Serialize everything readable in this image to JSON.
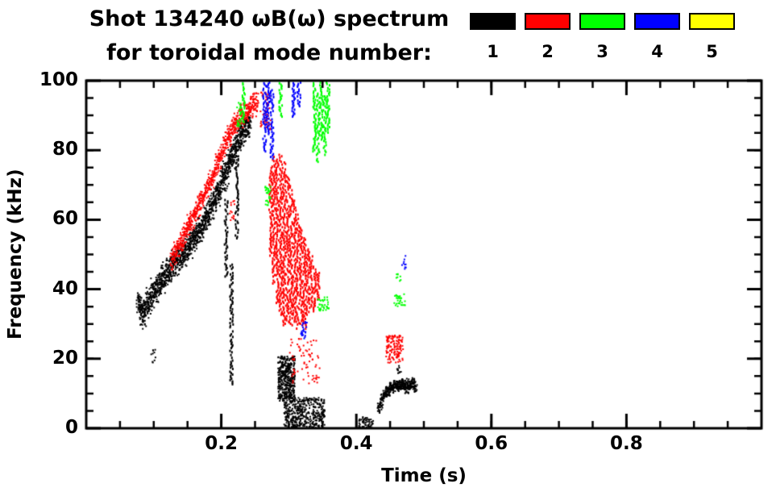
{
  "header": {
    "line1": "Shot 134240 ωB(ω) spectrum",
    "line2": "for toroidal mode number:"
  },
  "legend": {
    "items": [
      {
        "label": "1",
        "color": "#000000"
      },
      {
        "label": "2",
        "color": "#ff0000"
      },
      {
        "label": "3",
        "color": "#00ff00"
      },
      {
        "label": "4",
        "color": "#0000ff"
      },
      {
        "label": "5",
        "color": "#ffff00"
      }
    ]
  },
  "axes": {
    "x": {
      "label": "Time (s)",
      "min": 0.0,
      "max": 1.0,
      "major_ticks": [
        0.2,
        0.4,
        0.6,
        0.8
      ],
      "major_tick_labels": [
        "0.2",
        "0.4",
        "0.6",
        "0.8"
      ],
      "minor_step": 0.05
    },
    "y": {
      "label": "Frequency (kHz)",
      "min": 0,
      "max": 100,
      "major_ticks": [
        0,
        20,
        40,
        60,
        80,
        100
      ],
      "major_tick_labels": [
        "0",
        "20",
        "40",
        "60",
        "80",
        "100"
      ],
      "minor_step": 5
    }
  },
  "chart_data": {
    "type": "scatter",
    "title": "Shot 134240 ωB(ω) spectrum for toroidal mode number: 1 2 3 4 5",
    "xlabel": "Time (s)",
    "ylabel": "Frequency (kHz)",
    "xlim": [
      0.0,
      1.0
    ],
    "ylim": [
      0,
      100
    ],
    "grid": false,
    "legend_position": "top-right",
    "series": [
      {
        "name": "n=1",
        "mode_number": 1,
        "color": "#000000",
        "features": [
          {
            "type": "chirp",
            "desc": "rising chirp band 37→88 kHz over t=0.075–0.24 s",
            "width": 6,
            "density": 9,
            "dot": [
              2,
              2
            ],
            "points": [
              [
                0.075,
                37
              ],
              [
                0.082,
                33
              ],
              [
                0.09,
                36
              ],
              [
                0.1,
                40
              ],
              [
                0.115,
                44
              ],
              [
                0.13,
                48
              ],
              [
                0.145,
                51
              ],
              [
                0.16,
                55
              ],
              [
                0.175,
                60
              ],
              [
                0.19,
                66
              ],
              [
                0.2,
                71
              ],
              [
                0.21,
                76
              ],
              [
                0.22,
                81
              ],
              [
                0.23,
                85
              ],
              [
                0.242,
                88
              ]
            ]
          },
          {
            "type": "streaks",
            "desc": "downward spikes from band",
            "dot": [
              2,
              3
            ],
            "lines": [
              [
                0.214,
                13,
                48
              ],
              [
                0.206,
                44,
                66
              ],
              [
                0.222,
                55,
                78
              ]
            ]
          },
          {
            "type": "blob",
            "t": [
              0.095,
              0.102
            ],
            "f": [
              19,
              23
            ],
            "count": 10,
            "dot": [
              2,
              2
            ]
          },
          {
            "type": "blob",
            "desc": "low-f activity burst",
            "t": [
              0.283,
              0.308
            ],
            "f": [
              8,
              21
            ],
            "count": 420,
            "dot": [
              2,
              2
            ]
          },
          {
            "type": "blob",
            "t": [
              0.292,
              0.352
            ],
            "f": [
              0,
              9
            ],
            "count": 420,
            "dot": [
              2,
              2
            ]
          },
          {
            "type": "blob",
            "t": [
              0.402,
              0.424
            ],
            "f": [
              0,
              3.5
            ],
            "count": 60,
            "dot": [
              2,
              2
            ]
          },
          {
            "type": "chirp",
            "desc": "late band 6–13 kHz at t=0.43–0.49 s",
            "width": 2.5,
            "density": 7,
            "dot": [
              2,
              2
            ],
            "points": [
              [
                0.432,
                6
              ],
              [
                0.44,
                10
              ],
              [
                0.449,
                12
              ],
              [
                0.458,
                12.5
              ],
              [
                0.466,
                13
              ],
              [
                0.474,
                12
              ],
              [
                0.482,
                13
              ],
              [
                0.488,
                11
              ]
            ]
          },
          {
            "type": "blob",
            "t": [
              0.459,
              0.465
            ],
            "f": [
              16,
              18.5
            ],
            "count": 10,
            "dot": [
              2,
              2
            ]
          }
        ]
      },
      {
        "name": "n=2",
        "mode_number": 2,
        "color": "#ff0000",
        "features": [
          {
            "type": "chirp",
            "desc": "rising chirp band 49→94 kHz over t=0.125–0.255 s",
            "width": 4.5,
            "density": 6,
            "dot": [
              2,
              2
            ],
            "points": [
              [
                0.125,
                49
              ],
              [
                0.14,
                54
              ],
              [
                0.155,
                60
              ],
              [
                0.17,
                66
              ],
              [
                0.185,
                72
              ],
              [
                0.197,
                78
              ],
              [
                0.207,
                83
              ],
              [
                0.217,
                87
              ],
              [
                0.228,
                90
              ],
              [
                0.24,
                92
              ],
              [
                0.253,
                94
              ]
            ]
          },
          {
            "type": "blob",
            "t": [
              0.256,
              0.272
            ],
            "f": [
              86,
              97
            ],
            "count": 50,
            "dot": [
              2,
              2
            ]
          },
          {
            "type": "streaks",
            "desc": "fishbone-like vertical bursts t=0.27–0.345 s",
            "dot": [
              2,
              3
            ],
            "lines": [
              [
                0.272,
                50,
                76
              ],
              [
                0.277,
                42,
                79
              ],
              [
                0.282,
                36,
                78
              ],
              [
                0.287,
                33,
                80
              ],
              [
                0.292,
                30,
                77
              ],
              [
                0.297,
                31,
                74
              ],
              [
                0.302,
                30,
                70
              ],
              [
                0.307,
                31,
                66
              ],
              [
                0.312,
                29,
                62
              ],
              [
                0.317,
                30,
                58
              ],
              [
                0.322,
                29,
                55
              ],
              [
                0.327,
                33,
                52
              ],
              [
                0.332,
                35,
                50
              ],
              [
                0.337,
                34,
                47
              ],
              [
                0.342,
                37,
                45
              ]
            ]
          },
          {
            "type": "blob",
            "t": [
              0.3,
              0.345
            ],
            "f": [
              13,
              26
            ],
            "count": 70,
            "dot": [
              2,
              2
            ]
          },
          {
            "type": "blob",
            "desc": "blob near t=0.455 s, 19–27 kHz",
            "t": [
              0.443,
              0.468
            ],
            "f": [
              19,
              27
            ],
            "count": 130,
            "dot": [
              2,
              2
            ]
          },
          {
            "type": "blob",
            "t": [
              0.211,
              0.219
            ],
            "f": [
              60,
              66
            ],
            "count": 14,
            "dot": [
              2,
              2
            ]
          }
        ]
      },
      {
        "name": "n=3",
        "mode_number": 3,
        "color": "#00ff00",
        "features": [
          {
            "type": "streaks",
            "desc": "high-frequency streaks near 80–100 kHz",
            "dot": [
              2,
              3
            ],
            "lines": [
              [
                0.232,
                88,
                100
              ],
              [
                0.287,
                90,
                100
              ],
              [
                0.337,
                80,
                100
              ],
              [
                0.342,
                77,
                97
              ],
              [
                0.347,
                83,
                100
              ],
              [
                0.352,
                79,
                96
              ],
              [
                0.357,
                85,
                100
              ]
            ]
          },
          {
            "type": "blob",
            "t": [
              0.222,
              0.231
            ],
            "f": [
              87,
              94
            ],
            "count": 30,
            "dot": [
              2,
              2
            ]
          },
          {
            "type": "blob",
            "t": [
              0.263,
              0.272
            ],
            "f": [
              64,
              70
            ],
            "count": 25,
            "dot": [
              2,
              2
            ]
          },
          {
            "type": "blob",
            "t": [
              0.342,
              0.358
            ],
            "f": [
              34,
              38
            ],
            "count": 35,
            "dot": [
              2,
              2
            ]
          },
          {
            "type": "blob",
            "t": [
              0.455,
              0.472
            ],
            "f": [
              35,
              39
            ],
            "count": 28,
            "dot": [
              2,
              2
            ]
          },
          {
            "type": "blob",
            "t": [
              0.458,
              0.465
            ],
            "f": [
              42,
              45
            ],
            "count": 8,
            "dot": [
              2,
              2
            ]
          }
        ]
      },
      {
        "name": "n=4",
        "mode_number": 4,
        "color": "#0000ff",
        "features": [
          {
            "type": "streaks",
            "desc": "high-frequency streaks near 80–100 kHz",
            "dot": [
              2,
              3
            ],
            "lines": [
              [
                0.263,
                80,
                100
              ],
              [
                0.268,
                85,
                100
              ],
              [
                0.274,
                78,
                98
              ],
              [
                0.306,
                90,
                100
              ],
              [
                0.314,
                93,
                100
              ]
            ]
          },
          {
            "type": "blob",
            "t": [
              0.315,
              0.326
            ],
            "f": [
              26,
              31
            ],
            "count": 25,
            "dot": [
              2,
              2
            ]
          },
          {
            "type": "blob",
            "t": [
              0.466,
              0.473
            ],
            "f": [
              46,
              50
            ],
            "count": 10,
            "dot": [
              2,
              2
            ]
          }
        ]
      },
      {
        "name": "n=5",
        "mode_number": 5,
        "color": "#ffff00",
        "features": []
      }
    ]
  }
}
